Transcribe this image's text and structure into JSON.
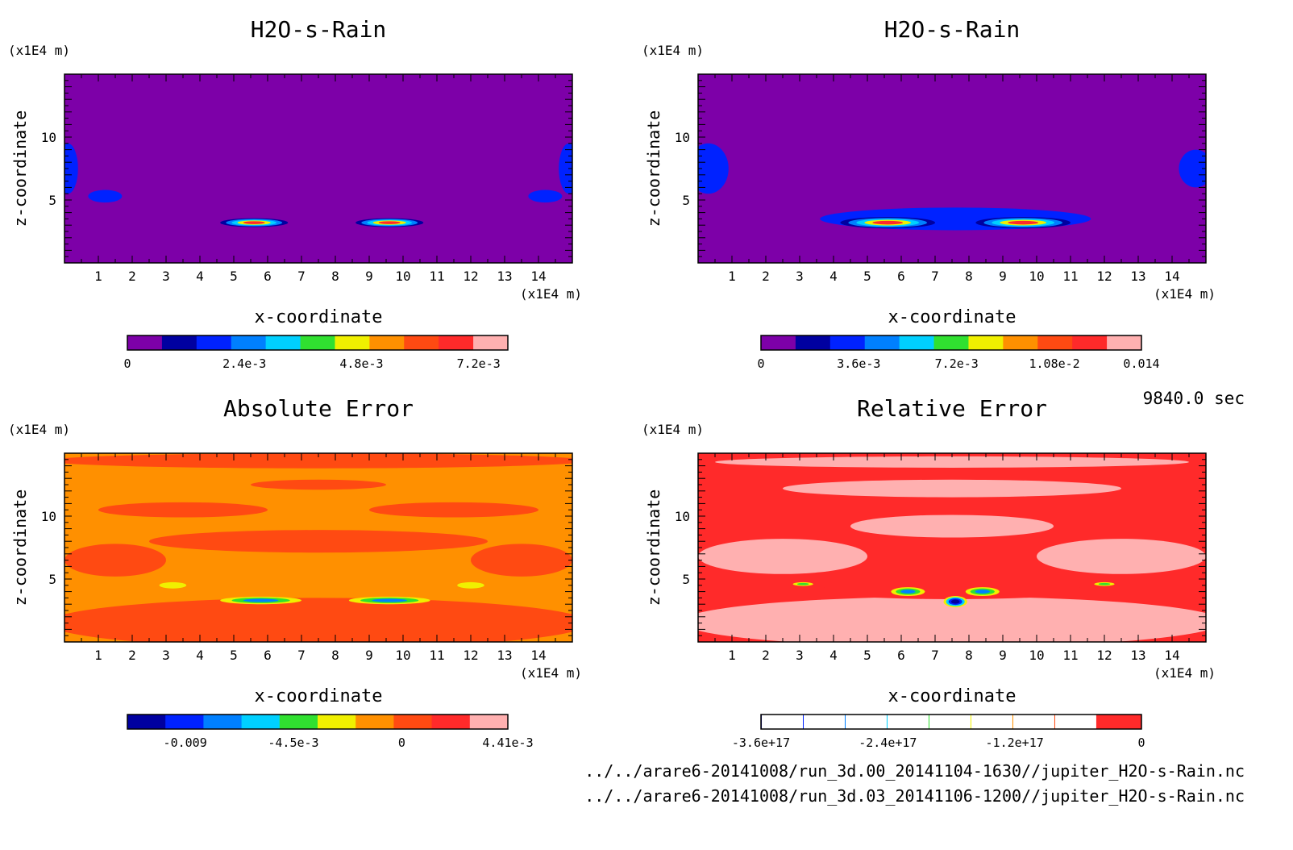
{
  "time_label": "9840.0 sec",
  "footer_files": [
    "../../arare6-20141008/run_3d.00_20141104-1630//jupiter_H2O-s-Rain.nc",
    "../../arare6-20141008/run_3d.03_20141106-1200//jupiter_H2O-s-Rain.nc"
  ],
  "colors": {
    "purple": "#7d00a8",
    "navy": "#0000a0",
    "blue": "#0022ff",
    "azure": "#0080ff",
    "cyan": "#00d0ff",
    "green": "#30e030",
    "yellow": "#f0f000",
    "orange": "#ff9000",
    "redorange": "#ff4a12",
    "red": "#ff2a2a",
    "pink": "#ffb0b0",
    "white": "#ffffff"
  },
  "chart_data": [
    {
      "type": "heatmap",
      "title": "H2O-s-Rain",
      "xlabel": "x-coordinate",
      "ylabel": "z-coordinate",
      "x_unit": "(x1E4 m)",
      "y_unit": "(x1E4 m)",
      "xlim": [
        0,
        15
      ],
      "ylim": [
        0,
        15
      ],
      "x_ticks": [
        1,
        2,
        3,
        4,
        5,
        6,
        7,
        8,
        9,
        10,
        11,
        12,
        13,
        14
      ],
      "y_ticks": [
        5,
        10
      ],
      "background_color": "purple",
      "features": [
        {
          "x": 5.6,
          "z": 3.2,
          "rx": 1.0,
          "rz": 0.35,
          "colors": [
            "navy",
            "azure",
            "cyan",
            "yellow",
            "red"
          ]
        },
        {
          "x": 9.6,
          "z": 3.2,
          "rx": 1.0,
          "rz": 0.35,
          "colors": [
            "navy",
            "azure",
            "cyan",
            "yellow",
            "red"
          ]
        },
        {
          "x": 1.2,
          "z": 5.3,
          "rx": 0.5,
          "rz": 0.5,
          "colors": [
            "blue"
          ]
        },
        {
          "x": 14.2,
          "z": 5.3,
          "rx": 0.5,
          "rz": 0.5,
          "colors": [
            "blue"
          ]
        },
        {
          "x": 0.1,
          "z": 7.5,
          "rx": 0.3,
          "rz": 2.0,
          "colors": [
            "blue"
          ]
        },
        {
          "x": 14.9,
          "z": 7.5,
          "rx": 0.3,
          "rz": 2.0,
          "colors": [
            "blue"
          ]
        }
      ],
      "colorbar": {
        "colors": [
          "purple",
          "navy",
          "blue",
          "azure",
          "cyan",
          "green",
          "yellow",
          "orange",
          "redorange",
          "red",
          "pink"
        ],
        "labels": [
          "0",
          "2.4e-3",
          "4.8e-3",
          "7.2e-3"
        ],
        "label_values": [
          0,
          0.0024,
          0.0048,
          0.0072
        ],
        "range": [
          0,
          0.0078
        ]
      }
    },
    {
      "type": "heatmap",
      "title": "H2O-s-Rain",
      "xlabel": "x-coordinate",
      "ylabel": "z-coordinate",
      "x_unit": "(x1E4 m)",
      "y_unit": "(x1E4 m)",
      "xlim": [
        0,
        15
      ],
      "ylim": [
        0,
        15
      ],
      "x_ticks": [
        1,
        2,
        3,
        4,
        5,
        6,
        7,
        8,
        9,
        10,
        11,
        12,
        13,
        14
      ],
      "y_ticks": [
        5,
        10
      ],
      "background_color": "purple",
      "features": [
        {
          "x": 7.6,
          "z": 3.5,
          "rx": 4.0,
          "rz": 0.9,
          "colors": [
            "blue"
          ]
        },
        {
          "x": 5.6,
          "z": 3.2,
          "rx": 1.4,
          "rz": 0.45,
          "colors": [
            "navy",
            "azure",
            "cyan",
            "yellow",
            "red"
          ]
        },
        {
          "x": 9.6,
          "z": 3.2,
          "rx": 1.4,
          "rz": 0.45,
          "colors": [
            "navy",
            "azure",
            "cyan",
            "yellow",
            "red"
          ]
        },
        {
          "x": 0.3,
          "z": 7.5,
          "rx": 0.6,
          "rz": 2.0,
          "colors": [
            "blue"
          ]
        },
        {
          "x": 14.7,
          "z": 7.5,
          "rx": 0.5,
          "rz": 1.5,
          "colors": [
            "blue"
          ]
        }
      ],
      "colorbar": {
        "colors": [
          "purple",
          "navy",
          "blue",
          "azure",
          "cyan",
          "green",
          "yellow",
          "orange",
          "redorange",
          "red",
          "pink"
        ],
        "labels": [
          "0",
          "3.6e-3",
          "7.2e-3",
          "1.08e-2",
          "0.014"
        ],
        "label_values": [
          0,
          0.0036,
          0.0072,
          0.0108,
          0.014
        ],
        "range": [
          0,
          0.014
        ]
      }
    },
    {
      "type": "heatmap",
      "title": "Absolute Error",
      "xlabel": "x-coordinate",
      "ylabel": "z-coordinate",
      "x_unit": "(x1E4 m)",
      "y_unit": "(x1E4 m)",
      "xlim": [
        0,
        15
      ],
      "ylim": [
        0,
        15
      ],
      "x_ticks": [
        1,
        2,
        3,
        4,
        5,
        6,
        7,
        8,
        9,
        10,
        11,
        12,
        13,
        14
      ],
      "y_ticks": [
        5,
        10
      ],
      "background_color": "orange",
      "features": [
        {
          "x": 7.5,
          "z": 1.5,
          "rx": 8.0,
          "rz": 2.0,
          "colors": [
            "redorange"
          ]
        },
        {
          "x": 7.5,
          "z": 8.0,
          "rx": 5.0,
          "rz": 0.9,
          "colors": [
            "redorange"
          ]
        },
        {
          "x": 3.5,
          "z": 10.5,
          "rx": 2.5,
          "rz": 0.6,
          "colors": [
            "redorange"
          ]
        },
        {
          "x": 11.5,
          "z": 10.5,
          "rx": 2.5,
          "rz": 0.6,
          "colors": [
            "redorange"
          ]
        },
        {
          "x": 7.5,
          "z": 14.4,
          "rx": 8.0,
          "rz": 0.6,
          "colors": [
            "redorange"
          ]
        },
        {
          "x": 7.5,
          "z": 12.5,
          "rx": 2.0,
          "rz": 0.4,
          "colors": [
            "redorange"
          ]
        },
        {
          "x": 1.5,
          "z": 6.5,
          "rx": 1.5,
          "rz": 1.3,
          "colors": [
            "redorange"
          ]
        },
        {
          "x": 13.5,
          "z": 6.5,
          "rx": 1.5,
          "rz": 1.3,
          "colors": [
            "redorange"
          ]
        },
        {
          "x": 3.2,
          "z": 4.5,
          "rx": 0.4,
          "rz": 0.25,
          "colors": [
            "yellow"
          ]
        },
        {
          "x": 12.0,
          "z": 4.5,
          "rx": 0.4,
          "rz": 0.25,
          "colors": [
            "yellow"
          ]
        },
        {
          "x": 5.8,
          "z": 3.3,
          "rx": 1.2,
          "rz": 0.3,
          "colors": [
            "yellow",
            "green",
            "azure"
          ]
        },
        {
          "x": 9.6,
          "z": 3.3,
          "rx": 1.2,
          "rz": 0.3,
          "colors": [
            "yellow",
            "green",
            "azure"
          ]
        }
      ],
      "colorbar": {
        "colors": [
          "navy",
          "blue",
          "azure",
          "cyan",
          "green",
          "yellow",
          "orange",
          "redorange",
          "red",
          "pink"
        ],
        "labels": [
          "-0.009",
          "-4.5e-3",
          "0",
          "4.41e-3"
        ],
        "label_values": [
          -0.009,
          -0.0045,
          0,
          0.00441
        ],
        "range": [
          -0.0114,
          0.00441
        ]
      }
    },
    {
      "type": "heatmap",
      "title": "Relative Error",
      "xlabel": "x-coordinate",
      "ylabel": "z-coordinate",
      "x_unit": "(x1E4 m)",
      "y_unit": "(x1E4 m)",
      "xlim": [
        0,
        15
      ],
      "ylim": [
        0,
        15
      ],
      "x_ticks": [
        1,
        2,
        3,
        4,
        5,
        6,
        7,
        8,
        9,
        10,
        11,
        12,
        13,
        14
      ],
      "y_ticks": [
        5,
        10
      ],
      "background_color": "red",
      "features": [
        {
          "x": 7.5,
          "z": 1.6,
          "rx": 8.0,
          "rz": 2.0,
          "colors": [
            "pink"
          ]
        },
        {
          "x": 2.5,
          "z": 6.8,
          "rx": 2.5,
          "rz": 1.4,
          "colors": [
            "pink"
          ]
        },
        {
          "x": 12.5,
          "z": 6.8,
          "rx": 2.5,
          "rz": 1.4,
          "colors": [
            "pink"
          ]
        },
        {
          "x": 7.5,
          "z": 9.2,
          "rx": 3.0,
          "rz": 0.9,
          "colors": [
            "pink"
          ]
        },
        {
          "x": 7.5,
          "z": 12.2,
          "rx": 5.0,
          "rz": 0.7,
          "colors": [
            "pink"
          ]
        },
        {
          "x": 7.5,
          "z": 14.3,
          "rx": 7.0,
          "rz": 0.45,
          "colors": [
            "pink"
          ]
        },
        {
          "x": 7.5,
          "z": 4.1,
          "rx": 4.0,
          "rz": 0.7,
          "colors": [
            "red"
          ]
        },
        {
          "x": 6.2,
          "z": 4.0,
          "rx": 0.5,
          "rz": 0.35,
          "colors": [
            "yellow",
            "green",
            "azure"
          ]
        },
        {
          "x": 8.4,
          "z": 4.0,
          "rx": 0.5,
          "rz": 0.35,
          "colors": [
            "yellow",
            "green",
            "azure"
          ]
        },
        {
          "x": 7.6,
          "z": 3.2,
          "rx": 0.35,
          "rz": 0.45,
          "colors": [
            "yellow",
            "cyan",
            "blue",
            "navy"
          ]
        },
        {
          "x": 3.1,
          "z": 4.6,
          "rx": 0.3,
          "rz": 0.15,
          "colors": [
            "yellow",
            "green"
          ]
        },
        {
          "x": 12.0,
          "z": 4.6,
          "rx": 0.3,
          "rz": 0.15,
          "colors": [
            "yellow",
            "green"
          ]
        }
      ],
      "colorbar": {
        "colors": [
          "navy",
          "white",
          "blue",
          "white",
          "azure",
          "white",
          "cyan",
          "white",
          "green",
          "white",
          "yellow",
          "white",
          "orange",
          "white",
          "redorange",
          "white",
          "red"
        ],
        "segment_weights": [
          1,
          50,
          1,
          50,
          1,
          50,
          1,
          50,
          1,
          50,
          1,
          50,
          1,
          50,
          1,
          50,
          55
        ],
        "labels": [
          "-3.6e+17",
          "-2.4e+17",
          "-1.2e+17",
          "0"
        ],
        "label_values": [
          -3.6e+17,
          -2.4e+17,
          -1.2e+17,
          0
        ],
        "range": [
          -3.6e+17,
          0
        ]
      }
    }
  ]
}
